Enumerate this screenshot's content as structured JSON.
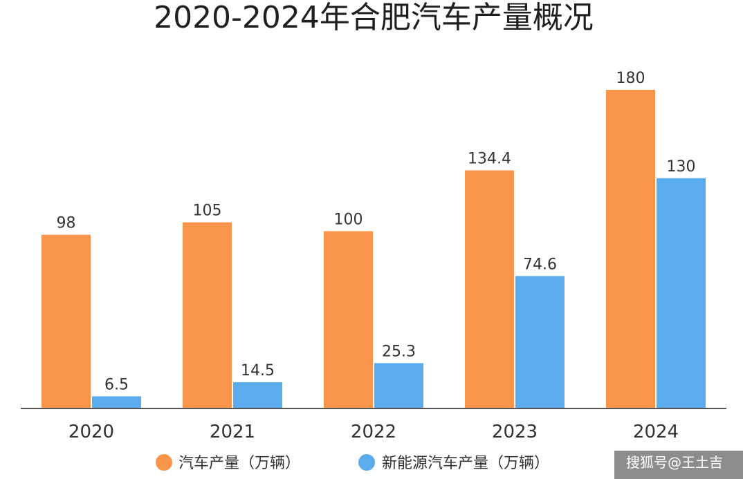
{
  "watermark": "搜狐号@王土吉",
  "colors": {
    "series_1": "#f8954a",
    "series_2": "#5aacef",
    "axis": "#555555",
    "text": "#333333"
  },
  "chart_data": {
    "type": "bar",
    "title": "2020-2024年合肥汽车产量概况",
    "xlabel": "",
    "ylabel": "",
    "categories": [
      "2020",
      "2021",
      "2022",
      "2023",
      "2024"
    ],
    "series": [
      {
        "name": "汽车产量（万辆）",
        "values": [
          98,
          105,
          100,
          134.4,
          180
        ],
        "color": "#f8954a"
      },
      {
        "name": "新能源汽车产量（万辆）",
        "values": [
          6.5,
          14.5,
          25.3,
          74.6,
          130
        ],
        "color": "#5aacef"
      }
    ],
    "data_labels": [
      [
        "98",
        "105",
        "100",
        "134.4",
        "180"
      ],
      [
        "6.5",
        "14.5",
        "25.3",
        "74.6",
        "130"
      ]
    ],
    "ylim": [
      0,
      180
    ],
    "grid": false,
    "legend_position": "bottom"
  }
}
